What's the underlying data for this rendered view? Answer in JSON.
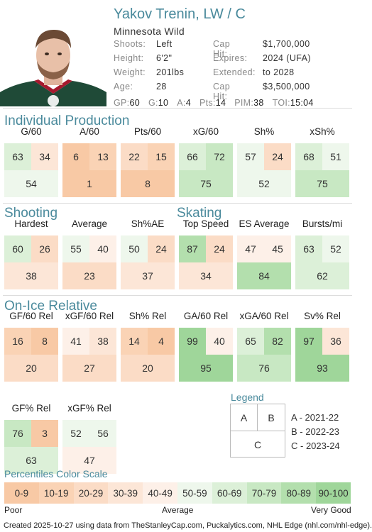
{
  "player": {
    "name": "Yakov Trenin, LW / C",
    "team": "Minnesota Wild",
    "left_info": [
      {
        "label": "Shoots:",
        "value": "Left"
      },
      {
        "label": "Height:",
        "value": "6'2\""
      },
      {
        "label": "Weight:",
        "value": "201lbs"
      },
      {
        "label": "Age:",
        "value": "28"
      }
    ],
    "right_info": [
      {
        "label": "Cap Hit:",
        "value": "$1,700,000"
      },
      {
        "label": "Expires:",
        "value": "2024 (UFA)"
      },
      {
        "label": "Extended:",
        "value": "to 2028"
      },
      {
        "label": "Cap Hit:",
        "value": "$3,500,000"
      }
    ],
    "stats_line": [
      {
        "label": "GP:",
        "value": "60"
      },
      {
        "label": "G:",
        "value": "10"
      },
      {
        "label": "A:",
        "value": "4"
      },
      {
        "label": "Pts:",
        "value": "14"
      },
      {
        "label": "PIM:",
        "value": "38"
      },
      {
        "label": "TOI:",
        "value": "15:04"
      }
    ]
  },
  "sections": {
    "individual": "Individual Production",
    "shooting": "Shooting",
    "skating": "Skating",
    "onice": "On-Ice Relative"
  },
  "metrics": [
    {
      "id": "g60",
      "label": "G/60",
      "a": 63,
      "b": 34,
      "c": 54
    },
    {
      "id": "a60",
      "label": "A/60",
      "a": 6,
      "b": 13,
      "c": 1
    },
    {
      "id": "pts60",
      "label": "Pts/60",
      "a": 22,
      "b": 15,
      "c": 8
    },
    {
      "id": "xg60",
      "label": "xG/60",
      "a": 66,
      "b": 72,
      "c": 75
    },
    {
      "id": "shpct",
      "label": "Sh%",
      "a": 57,
      "b": 24,
      "c": 52
    },
    {
      "id": "xshpct",
      "label": "xSh%",
      "a": 68,
      "b": 51,
      "c": 75
    },
    {
      "id": "hardest",
      "label": "Hardest",
      "a": 60,
      "b": 26,
      "c": 38
    },
    {
      "id": "average",
      "label": "Average",
      "a": 55,
      "b": 40,
      "c": 23
    },
    {
      "id": "shpctae",
      "label": "Sh%AE",
      "a": 50,
      "b": 24,
      "c": 37
    },
    {
      "id": "topspeed",
      "label": "Top Speed",
      "a": 87,
      "b": 24,
      "c": 34
    },
    {
      "id": "esaverage",
      "label": "ES Average",
      "a": 47,
      "b": 45,
      "c": 84
    },
    {
      "id": "bursts",
      "label": "Bursts/mi",
      "a": 63,
      "b": 52,
      "c": 62
    },
    {
      "id": "gf60rel",
      "label": "GF/60 Rel",
      "a": 16,
      "b": 8,
      "c": 20
    },
    {
      "id": "xgf60rel",
      "label": "xGF/60 Rel",
      "a": 41,
      "b": 38,
      "c": 27
    },
    {
      "id": "shrel",
      "label": "Sh% Rel",
      "a": 14,
      "b": 4,
      "c": 20
    },
    {
      "id": "ga60",
      "label": "GA/60 Rel",
      "a": 99,
      "b": 40,
      "c": 95
    },
    {
      "id": "xga60",
      "label": "xGA/60 Rel",
      "a": 65,
      "b": 82,
      "c": 76
    },
    {
      "id": "svrel",
      "label": "Sv% Rel",
      "a": 97,
      "b": 36,
      "c": 93
    },
    {
      "id": "gfpct",
      "label": "GF% Rel",
      "a": 76,
      "b": 3,
      "c": 63
    },
    {
      "id": "xgfpct",
      "label": "xGF% Rel",
      "a": 52,
      "b": 56,
      "c": 47
    }
  ],
  "legend": {
    "title": "Legend",
    "a": "A",
    "b": "B",
    "c": "C",
    "keys": [
      "A - 2021-22",
      "B - 2022-23",
      "C - 2023-24"
    ]
  },
  "scale": {
    "title": "Percentiles Color Scale",
    "bins": [
      "0-9",
      "10-19",
      "20-29",
      "30-39",
      "40-49",
      "50-59",
      "60-69",
      "70-79",
      "80-89",
      "90-100"
    ],
    "colors": [
      "#f8c9a5",
      "#fad3b5",
      "#fbdcc6",
      "#fce6d7",
      "#fdf0e8",
      "#eef7ec",
      "#dcf0d8",
      "#c8e8c3",
      "#b3dfad",
      "#9fd69a"
    ],
    "poor": "Poor",
    "average": "Average",
    "very_good": "Very Good"
  },
  "footer": "Created 2025-10-27 using data from TheStanleyCap.com, Puckalytics.com, NHL Edge (nhl.com/nhl-edge)."
}
